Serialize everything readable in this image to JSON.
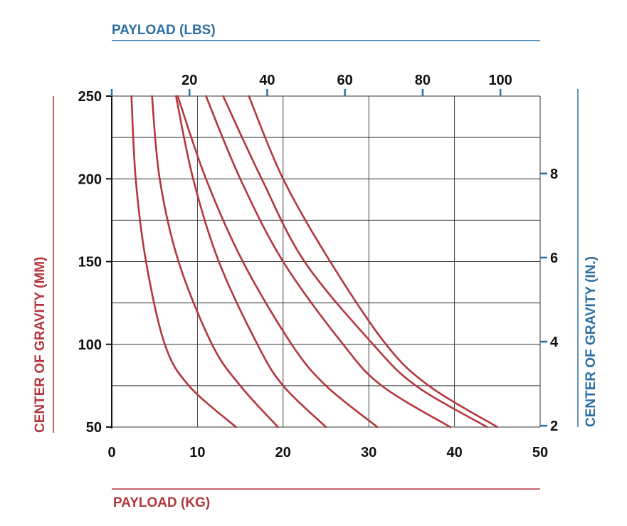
{
  "chart_data": {
    "type": "line",
    "top_axis_title": "PAYLOAD (LBS)",
    "bottom_axis_title": "PAYLOAD (KG)",
    "left_axis_title": "CENTER OF GRAVITY (MM)",
    "right_axis_title": "CENTER OF GRAVITY (IN.)",
    "x_kg": {
      "range": [
        0,
        50
      ],
      "ticks": [
        "0",
        "10",
        "20",
        "30",
        "40",
        "50"
      ]
    },
    "x_lbs": {
      "ticks": [
        "20",
        "40",
        "60",
        "80",
        "100"
      ],
      "values": [
        20,
        40,
        60,
        80,
        100
      ]
    },
    "y_mm": {
      "range": [
        50,
        250
      ],
      "ticks": [
        "250",
        "200",
        "150",
        "100",
        "50"
      ]
    },
    "y_in": {
      "ticks": [
        "8",
        "6",
        "4",
        "2"
      ],
      "values": [
        8,
        6,
        4,
        2
      ]
    },
    "grid": true,
    "series": [
      {
        "points": [
          [
            2.3,
            250
          ],
          [
            2.8,
            200
          ],
          [
            4.0,
            150
          ],
          [
            6.2,
            100
          ],
          [
            9.0,
            75
          ],
          [
            14.5,
            50
          ]
        ]
      },
      {
        "points": [
          [
            4.7,
            250
          ],
          [
            5.6,
            200
          ],
          [
            7.8,
            150
          ],
          [
            11.7,
            100
          ],
          [
            15.0,
            75
          ],
          [
            19.4,
            50
          ]
        ]
      },
      {
        "points": [
          [
            7.5,
            250
          ],
          [
            9.5,
            200
          ],
          [
            12.5,
            150
          ],
          [
            17.0,
            100
          ],
          [
            20.0,
            75
          ],
          [
            25.0,
            50
          ]
        ]
      },
      {
        "points": [
          [
            7.7,
            250
          ],
          [
            11.0,
            200
          ],
          [
            15.3,
            150
          ],
          [
            21.0,
            100
          ],
          [
            25.0,
            75
          ],
          [
            31.0,
            50
          ]
        ]
      },
      {
        "points": [
          [
            11.0,
            250
          ],
          [
            15.0,
            200
          ],
          [
            20.0,
            150
          ],
          [
            27.0,
            100
          ],
          [
            31.5,
            75
          ],
          [
            39.5,
            50
          ]
        ]
      },
      {
        "points": [
          [
            13.0,
            250
          ],
          [
            17.5,
            200
          ],
          [
            22.5,
            150
          ],
          [
            30.5,
            100
          ],
          [
            35.5,
            75
          ],
          [
            43.8,
            50
          ]
        ]
      },
      {
        "points": [
          [
            16.0,
            250
          ],
          [
            20.0,
            200
          ],
          [
            25.5,
            150
          ],
          [
            32.0,
            100
          ],
          [
            37.0,
            75
          ],
          [
            45.0,
            50
          ]
        ]
      }
    ],
    "colors": {
      "curve": "#b3373e",
      "grid": "#333333",
      "red_axis": "#b3373e",
      "blue_axis": "#2d6fa3",
      "tick_text": "#111111"
    }
  }
}
